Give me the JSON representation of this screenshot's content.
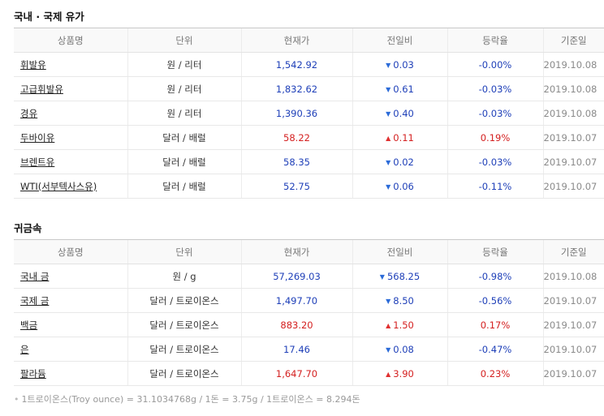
{
  "oil": {
    "title": "국내 · 국제 유가",
    "headers": [
      "상품명",
      "단위",
      "현재가",
      "전일비",
      "등락율",
      "기준일"
    ],
    "rows": [
      {
        "name": "휘발유",
        "unit": "원 / 리터",
        "price": "1,542.92",
        "dir": "down",
        "change": "0.03",
        "rate": "-0.00%",
        "date": "2019.10.08"
      },
      {
        "name": "고급휘발유",
        "unit": "원 / 리터",
        "price": "1,832.62",
        "dir": "down",
        "change": "0.61",
        "rate": "-0.03%",
        "date": "2019.10.08"
      },
      {
        "name": "경유",
        "unit": "원 / 리터",
        "price": "1,390.36",
        "dir": "down",
        "change": "0.40",
        "rate": "-0.03%",
        "date": "2019.10.08"
      },
      {
        "name": "두바이유",
        "unit": "달러 / 배럴",
        "price": "58.22",
        "dir": "up",
        "change": "0.11",
        "rate": "0.19%",
        "date": "2019.10.07"
      },
      {
        "name": "브렌트유",
        "unit": "달러 / 배럴",
        "price": "58.35",
        "dir": "down",
        "change": "0.02",
        "rate": "-0.03%",
        "date": "2019.10.07"
      },
      {
        "name": "WTI(서부텍사스유)",
        "unit": "달러 / 배럴",
        "price": "52.75",
        "dir": "down",
        "change": "0.06",
        "rate": "-0.11%",
        "date": "2019.10.07"
      }
    ]
  },
  "metal": {
    "title": "귀금속",
    "headers": [
      "상품명",
      "단위",
      "현재가",
      "전일비",
      "등락율",
      "기준일"
    ],
    "rows": [
      {
        "name": "국내 금",
        "unit": "원 / g",
        "price": "57,269.03",
        "dir": "down",
        "change": "568.25",
        "rate": "-0.98%",
        "date": "2019.10.08"
      },
      {
        "name": "국제 금",
        "unit": "달러 / 트로이온스",
        "price": "1,497.70",
        "dir": "down",
        "change": "8.50",
        "rate": "-0.56%",
        "date": "2019.10.07"
      },
      {
        "name": "백금",
        "unit": "달러 / 트로이온스",
        "price": "883.20",
        "dir": "up",
        "change": "1.50",
        "rate": "0.17%",
        "date": "2019.10.07"
      },
      {
        "name": "은",
        "unit": "달러 / 트로이온스",
        "price": "17.46",
        "dir": "down",
        "change": "0.08",
        "rate": "-0.47%",
        "date": "2019.10.07"
      },
      {
        "name": "팔라듐",
        "unit": "달러 / 트로이온스",
        "price": "1,647.70",
        "dir": "up",
        "change": "3.90",
        "rate": "0.23%",
        "date": "2019.10.07"
      }
    ]
  },
  "note": {
    "bullet": "•",
    "text": "1트로이온스(Troy ounce) = 31.1034768g / 1돈 = 3.75g / 1트로이온스 = 8.294돈"
  },
  "colors": {
    "up": "#d42020",
    "down": "#1e3fb8"
  },
  "icons": {
    "up": "triangle-up-icon",
    "down": "triangle-down-icon"
  }
}
